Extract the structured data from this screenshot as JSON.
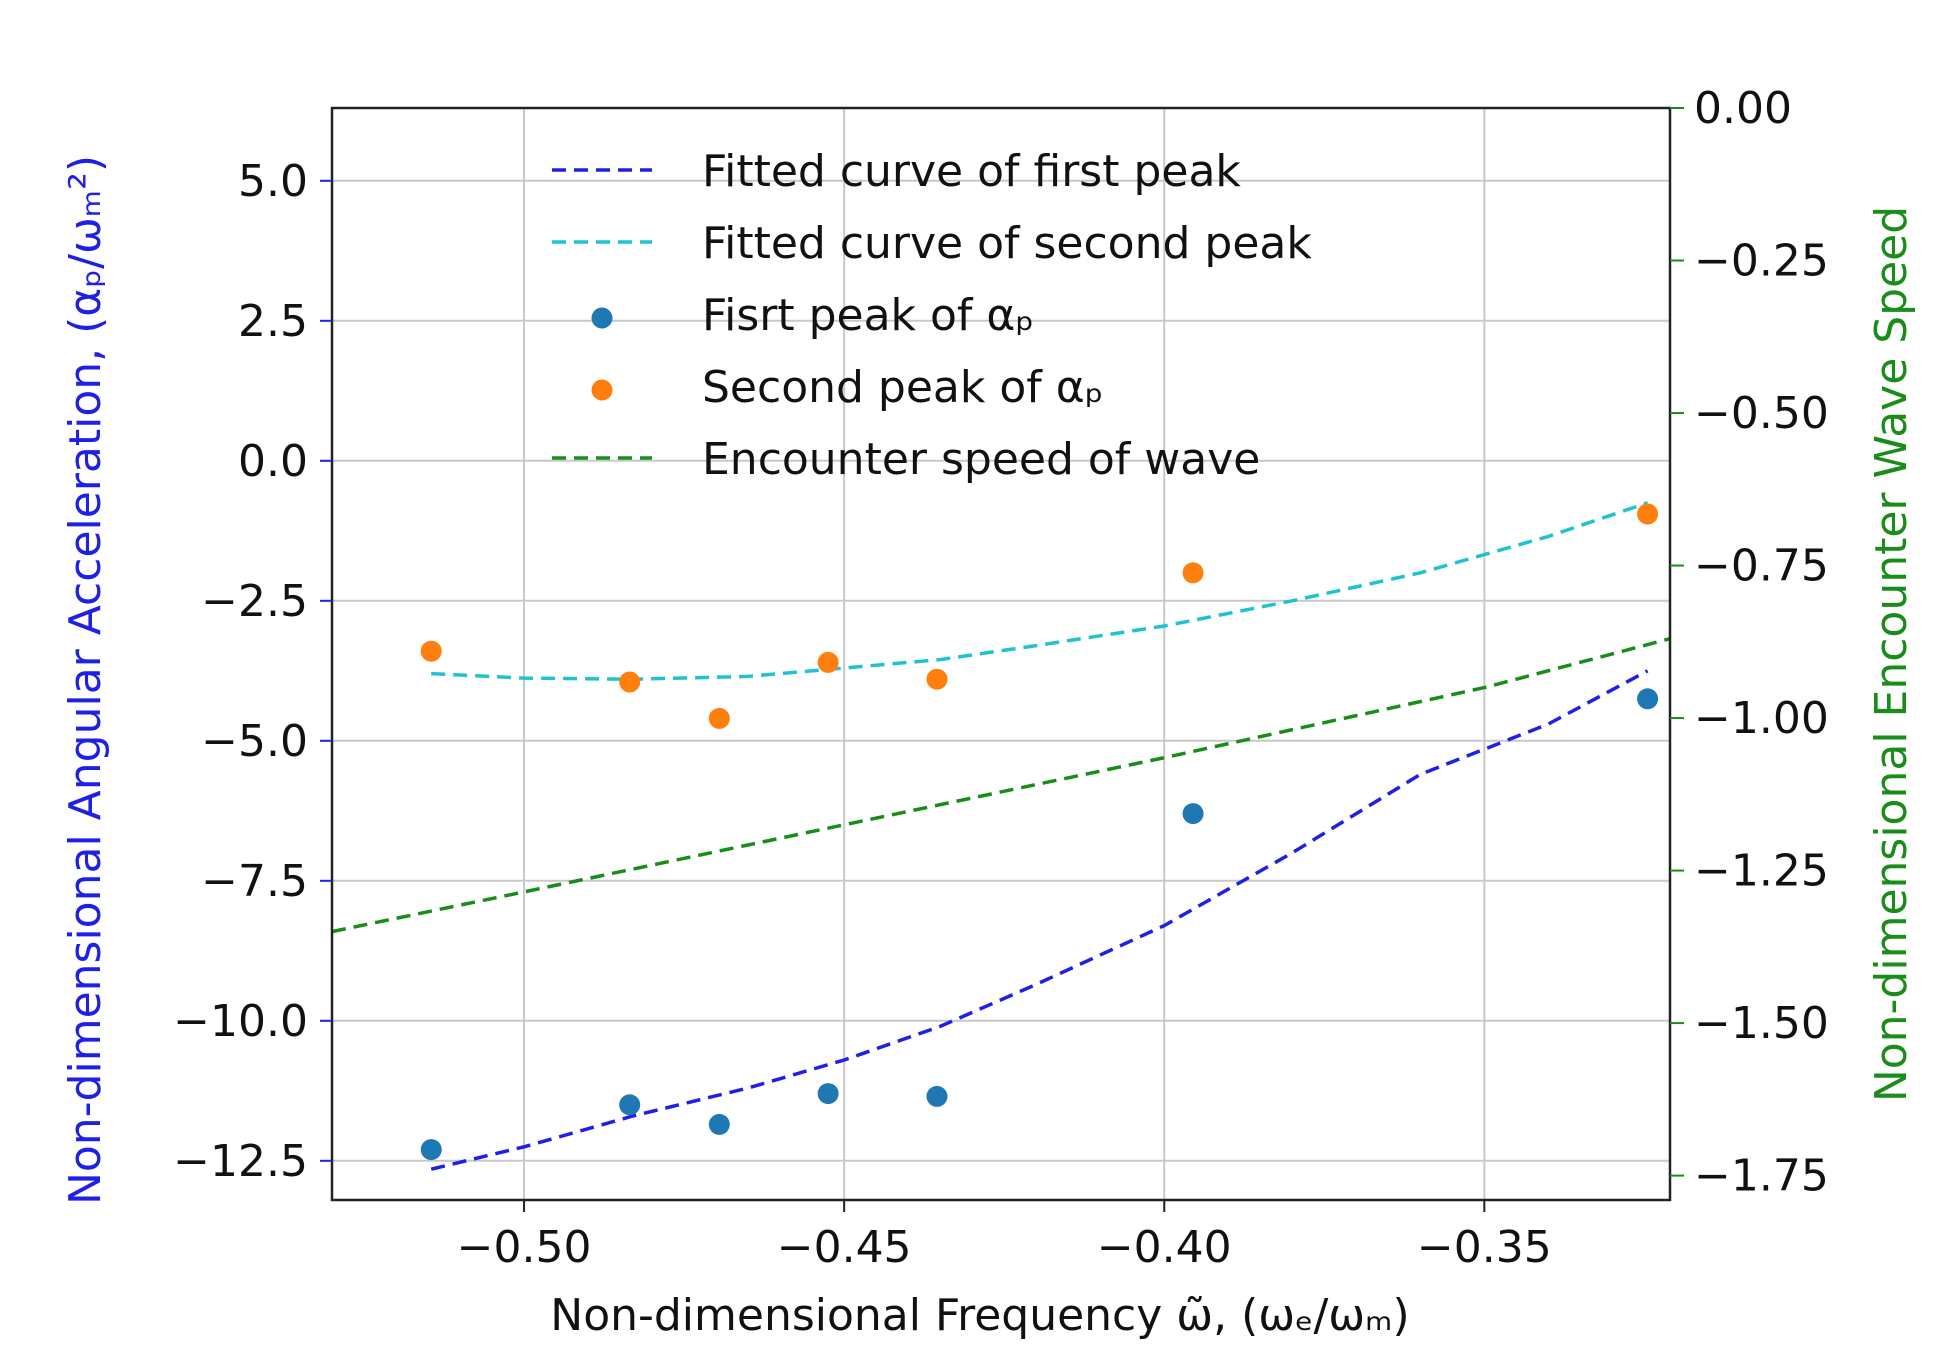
{
  "colors": {
    "first_fit": "#1f1fe6",
    "second_fit": "#1fc3cf",
    "first_peak": "#1f77b4",
    "second_peak": "#ff7f0e",
    "encounter": "#1a8c1a",
    "left_axis_label": "#1f1fe6",
    "right_axis_label": "#1a8c1a",
    "grid": "#c8c8c8"
  },
  "chart_data": {
    "type": "scatter",
    "title": "",
    "xlabel": "Non-dimensional  Frequency ω̃, (ωₑ/ωₘ)",
    "ylabel_left": "Non-dimensional Angular Acceleration, (αₚ/ωₘ²)",
    "ylabel_right": "Non-dimensional Encounter Wave Speed",
    "xlim": [
      -0.53,
      -0.321
    ],
    "ylim_left": [
      -13.2,
      6.3
    ],
    "ylim_right": [
      -1.79,
      0.0
    ],
    "x_ticks": [
      -0.5,
      -0.45,
      -0.4,
      -0.35
    ],
    "x_tick_labels": [
      "−0.50",
      "−0.45",
      "−0.40",
      "−0.35"
    ],
    "y_left_ticks": [
      5.0,
      2.5,
      0.0,
      -2.5,
      -5.0,
      -7.5,
      -10.0,
      -12.5
    ],
    "y_left_tick_labels": [
      "5.0",
      "2.5",
      "0.0",
      "−2.5",
      "−5.0",
      "−7.5",
      "−10.0",
      "−12.5"
    ],
    "y_right_ticks": [
      0.0,
      -0.25,
      -0.5,
      -0.75,
      -1.0,
      -1.25,
      -1.5,
      -1.75
    ],
    "y_right_tick_labels": [
      "0.00",
      "−0.25",
      "−0.50",
      "−0.75",
      "−1.00",
      "−1.25",
      "−1.50",
      "−1.75"
    ],
    "grid": true,
    "legend_position": "top-center",
    "series": [
      {
        "name": "Fitted curve of first peak",
        "kind": "dashed-line",
        "axis": "left",
        "color_key": "first_fit",
        "x": [
          -0.5145,
          -0.5,
          -0.483,
          -0.465,
          -0.45,
          -0.435,
          -0.42,
          -0.4,
          -0.38,
          -0.36,
          -0.34,
          -0.3245
        ],
        "y": [
          -12.65,
          -12.25,
          -11.7,
          -11.2,
          -10.7,
          -10.1,
          -9.35,
          -8.3,
          -7.0,
          -5.6,
          -4.7,
          -3.75
        ]
      },
      {
        "name": "Fitted curve of second peak",
        "kind": "dashed-line",
        "axis": "left",
        "color_key": "second_fit",
        "x": [
          -0.5145,
          -0.5,
          -0.483,
          -0.465,
          -0.45,
          -0.435,
          -0.42,
          -0.4,
          -0.38,
          -0.36,
          -0.34,
          -0.3245
        ],
        "y": [
          -3.8,
          -3.88,
          -3.9,
          -3.85,
          -3.7,
          -3.55,
          -3.3,
          -2.95,
          -2.5,
          -2.0,
          -1.35,
          -0.75
        ]
      },
      {
        "name": "Fisrt peak of αₚ",
        "kind": "scatter",
        "axis": "left",
        "color_key": "first_peak",
        "x": [
          -0.5145,
          -0.4835,
          -0.4695,
          -0.4525,
          -0.4355,
          -0.3955,
          -0.3245
        ],
        "y": [
          -12.3,
          -11.5,
          -11.85,
          -11.3,
          -11.35,
          -6.3,
          -4.25
        ]
      },
      {
        "name": "Second peak of αₚ",
        "kind": "scatter",
        "axis": "left",
        "color_key": "second_peak",
        "x": [
          -0.5145,
          -0.4835,
          -0.4695,
          -0.4525,
          -0.4355,
          -0.3955,
          -0.3245
        ],
        "y": [
          -3.4,
          -3.95,
          -4.6,
          -3.6,
          -3.9,
          -2.0,
          -0.95
        ]
      },
      {
        "name": "Encounter speed of wave",
        "kind": "dashed-line",
        "axis": "right",
        "color_key": "encounter",
        "x": [
          -0.53,
          -0.5,
          -0.45,
          -0.4,
          -0.35,
          -0.321
        ],
        "y": [
          -1.35,
          -1.285,
          -1.175,
          -1.065,
          -0.95,
          -0.87
        ]
      }
    ]
  }
}
